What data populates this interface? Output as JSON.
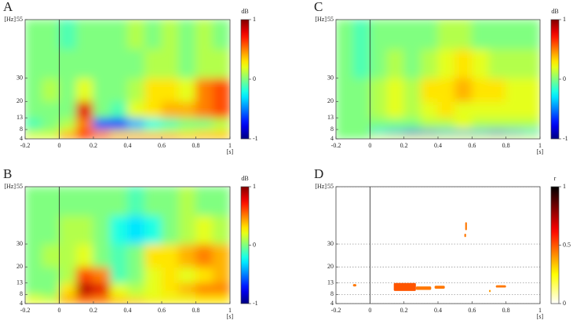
{
  "chart_data": [
    {
      "type": "heatmap",
      "label": "A",
      "xlabel": "[s]",
      "ylabel": "[Hz]",
      "xlim": [
        -0.2,
        1
      ],
      "xticks": [
        -0.2,
        0,
        0.2,
        0.4,
        0.6,
        0.8,
        1
      ],
      "ylim": [
        4,
        55
      ],
      "yticks": [
        4,
        8,
        13,
        20,
        30,
        55
      ],
      "vline": 0,
      "xbins": [
        -0.2,
        -0.1,
        0,
        0.1,
        0.2,
        0.3,
        0.4,
        0.5,
        0.6,
        0.7,
        0.8,
        0.9,
        1
      ],
      "ybins": [
        4,
        6,
        8,
        13,
        20,
        30,
        42.5,
        55
      ],
      "z": [
        [
          0.2,
          0.2,
          0.5,
          0.6,
          0.6,
          0.5,
          0.5,
          0.5,
          0.5,
          0.4,
          0.4,
          0.4
        ],
        [
          0.1,
          0.1,
          0.3,
          0.7,
          0.4,
          0.2,
          0.2,
          0.2,
          0.2,
          0.2,
          0.3,
          0.3
        ],
        [
          -0.1,
          0,
          0.1,
          0.5,
          -0.6,
          -0.7,
          -0.4,
          -0.2,
          -0.1,
          0,
          0,
          0.1
        ],
        [
          0,
          0,
          0,
          0.8,
          0,
          -0.1,
          0.2,
          0.3,
          0.4,
          0.4,
          0.5,
          0.6
        ],
        [
          0,
          0.1,
          0,
          0.2,
          0,
          0,
          0.1,
          0.3,
          0.3,
          0.2,
          0.5,
          0.6
        ],
        [
          0,
          0,
          0,
          0,
          0,
          0,
          0,
          0.1,
          0.1,
          0,
          0.1,
          0.1
        ],
        [
          0,
          0,
          -0.1,
          0,
          0,
          0,
          0.1,
          0,
          0.1,
          0,
          0.1,
          0
        ]
      ],
      "colorbar": {
        "label": "dB",
        "cmap": "jet",
        "lim": [
          -1,
          1
        ],
        "ticks": [
          -1,
          0,
          1
        ]
      }
    },
    {
      "type": "heatmap",
      "label": "B",
      "xlabel": "[s]",
      "ylabel": "[Hz]",
      "xlim": [
        -0.2,
        1
      ],
      "xticks": [
        -0.2,
        0,
        0.2,
        0.4,
        0.6,
        0.8,
        1
      ],
      "ylim": [
        4,
        55
      ],
      "yticks": [
        4,
        8,
        13,
        20,
        30,
        55
      ],
      "vline": 0,
      "xbins": [
        -0.2,
        -0.1,
        0,
        0.1,
        0.2,
        0.3,
        0.4,
        0.5,
        0.6,
        0.7,
        0.8,
        0.9,
        1
      ],
      "ybins": [
        4,
        6,
        8,
        13,
        20,
        30,
        42.5,
        55
      ],
      "z": [
        [
          0.2,
          0.2,
          0.4,
          0.5,
          0.5,
          0.4,
          0.4,
          0.3,
          0.3,
          0.3,
          0.3,
          0.3
        ],
        [
          0.2,
          0.1,
          0.4,
          0.6,
          0.5,
          0.3,
          0.2,
          0.2,
          0.2,
          0.2,
          0.3,
          0.3
        ],
        [
          0,
          0,
          0.3,
          0.9,
          0.8,
          0.2,
          0.1,
          0.2,
          0.3,
          0.4,
          0.5,
          0.5
        ],
        [
          0,
          0,
          0.1,
          0.6,
          0.5,
          -0.1,
          0,
          0.2,
          0.3,
          0.2,
          0.3,
          0.4
        ],
        [
          0,
          0.1,
          0.1,
          0.2,
          0,
          -0.1,
          0,
          0.3,
          0.3,
          0.4,
          0.5,
          0.4
        ],
        [
          0,
          0,
          0.1,
          0.1,
          0,
          -0.2,
          -0.3,
          -0.2,
          0,
          0.1,
          0.2,
          0.1
        ],
        [
          0,
          0,
          0,
          0,
          0,
          0,
          -0.1,
          0,
          0,
          0.1,
          0,
          0
        ]
      ],
      "colorbar": {
        "label": "dB",
        "cmap": "jet",
        "lim": [
          -1,
          1
        ],
        "ticks": [
          -1,
          0,
          1
        ]
      }
    },
    {
      "type": "heatmap",
      "label": "C",
      "xlabel": "[s]",
      "ylabel": "[Hz]",
      "xlim": [
        -0.2,
        1
      ],
      "xticks": [
        -0.2,
        0,
        0.2,
        0.4,
        0.6,
        0.8,
        1
      ],
      "ylim": [
        4,
        55
      ],
      "yticks": [
        4,
        8,
        13,
        20,
        30,
        55
      ],
      "vline": 0,
      "xbins": [
        -0.2,
        -0.1,
        0,
        0.1,
        0.2,
        0.3,
        0.4,
        0.5,
        0.6,
        0.7,
        0.8,
        0.9,
        1
      ],
      "ybins": [
        4,
        6,
        8,
        13,
        20,
        30,
        42.5,
        55
      ],
      "z": [
        [
          0,
          0,
          0.2,
          0.2,
          0.2,
          0.2,
          0.2,
          0.2,
          0.2,
          0.2,
          0.2,
          0.2
        ],
        [
          0,
          0,
          -0.3,
          -0.4,
          -0.6,
          -0.5,
          -0.4,
          -0.4,
          -0.4,
          -0.5,
          -0.4,
          -0.3
        ],
        [
          0,
          0,
          0,
          0,
          0,
          0.1,
          0.1,
          0.2,
          0.1,
          0.1,
          0.1,
          0.1
        ],
        [
          0,
          0,
          0.1,
          0.2,
          0.1,
          0.2,
          0.3,
          0.2,
          0.2,
          0.2,
          0.2,
          0.2
        ],
        [
          0,
          0,
          0.1,
          0.2,
          0.1,
          0.3,
          0.3,
          0.4,
          0.3,
          0.3,
          0.2,
          0.2
        ],
        [
          0,
          -0.1,
          0,
          0.1,
          0,
          0.1,
          0.2,
          0.3,
          0.2,
          0.1,
          0.1,
          0.1
        ],
        [
          0,
          -0.1,
          0,
          0,
          0,
          0,
          0.1,
          0.1,
          0,
          0,
          0,
          0
        ]
      ],
      "colorbar": {
        "label": "dB",
        "cmap": "jet",
        "lim": [
          -1,
          1
        ],
        "ticks": [
          -1,
          0,
          1
        ]
      }
    },
    {
      "type": "patches",
      "label": "D",
      "xlabel": "[s]",
      "ylabel": "[Hz]",
      "xlim": [
        -0.2,
        1
      ],
      "xticks": [
        -0.2,
        0,
        0.2,
        0.4,
        0.6,
        0.8,
        1
      ],
      "ylim": [
        4,
        55
      ],
      "yticks": [
        4,
        8,
        13,
        20,
        30,
        55
      ],
      "vline": 0,
      "grid": true,
      "patches": [
        {
          "x": [
            -0.1,
            -0.08
          ],
          "y": [
            11.5,
            12.5
          ],
          "value": 0.45
        },
        {
          "x": [
            0.14,
            0.27
          ],
          "y": [
            9.5,
            13
          ],
          "value": 0.5
        },
        {
          "x": [
            0.27,
            0.36
          ],
          "y": [
            10,
            11.5
          ],
          "value": 0.45
        },
        {
          "x": [
            0.38,
            0.44
          ],
          "y": [
            10.5,
            11.8
          ],
          "value": 0.45
        },
        {
          "x": [
            0.56,
            0.57
          ],
          "y": [
            36,
            39.5
          ],
          "value": 0.45
        },
        {
          "x": [
            0.555,
            0.565
          ],
          "y": [
            33,
            34.5
          ],
          "value": 0.45
        },
        {
          "x": [
            0.7,
            0.71
          ],
          "y": [
            9,
            10
          ],
          "value": 0.4
        },
        {
          "x": [
            0.74,
            0.8
          ],
          "y": [
            11,
            12
          ],
          "value": 0.45
        }
      ],
      "colorbar": {
        "label": "r",
        "cmap": "hot_r",
        "lim": [
          0,
          1
        ],
        "ticks": [
          0,
          0.5,
          1
        ]
      }
    }
  ]
}
